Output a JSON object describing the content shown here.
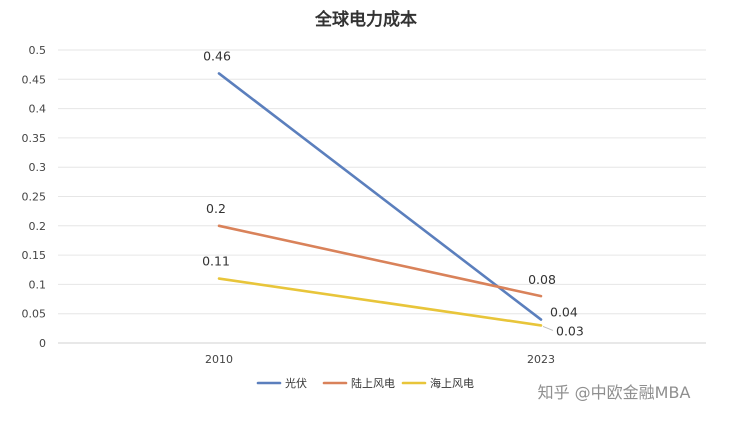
{
  "chart_data": {
    "type": "line",
    "title": "全球电力成本",
    "categories": [
      "2010",
      "2023"
    ],
    "ylim": [
      0,
      0.5
    ],
    "yticks": [
      "0",
      "0.05",
      "0.1",
      "0.15",
      "0.2",
      "0.25",
      "0.3",
      "0.35",
      "0.4",
      "0.45",
      "0.5"
    ],
    "grid": true,
    "legend_position": "bottom",
    "series": [
      {
        "name": "光伏",
        "values": [
          0.46,
          0.04
        ],
        "labels": [
          "0.46",
          "0.04"
        ],
        "color": "#5b7fbd"
      },
      {
        "name": "陆上风电",
        "values": [
          0.2,
          0.08
        ],
        "labels": [
          "0.2",
          "0.08"
        ],
        "color": "#d9825a"
      },
      {
        "name": "海上风电",
        "values": [
          0.11,
          0.03
        ],
        "labels": [
          "0.11",
          "0.03"
        ],
        "color": "#e8c53a"
      }
    ]
  },
  "watermark": "知乎 @中欧金融MBA"
}
